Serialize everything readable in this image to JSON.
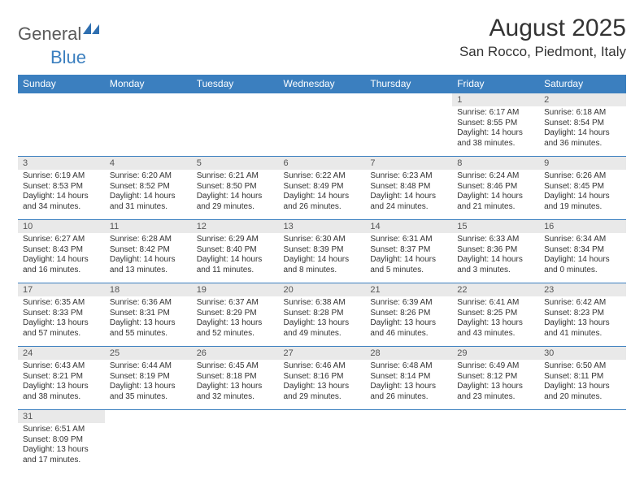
{
  "branding": {
    "word1": "General",
    "word2": "Blue",
    "icon_color": "#2f6fb0"
  },
  "header": {
    "month_title": "August 2025",
    "location": "San Rocco, Piedmont, Italy"
  },
  "colors": {
    "header_bg": "#3b7fbf",
    "header_fg": "#ffffff",
    "daynum_bg": "#e9e9e9",
    "border": "#3b7fbf"
  },
  "weekdays": [
    "Sunday",
    "Monday",
    "Tuesday",
    "Wednesday",
    "Thursday",
    "Friday",
    "Saturday"
  ],
  "weeks": [
    [
      {
        "blank": true
      },
      {
        "blank": true
      },
      {
        "blank": true
      },
      {
        "blank": true
      },
      {
        "blank": true
      },
      {
        "n": "1",
        "sr": "Sunrise: 6:17 AM",
        "ss": "Sunset: 8:55 PM",
        "dl1": "Daylight: 14 hours",
        "dl2": "and 38 minutes."
      },
      {
        "n": "2",
        "sr": "Sunrise: 6:18 AM",
        "ss": "Sunset: 8:54 PM",
        "dl1": "Daylight: 14 hours",
        "dl2": "and 36 minutes."
      }
    ],
    [
      {
        "n": "3",
        "sr": "Sunrise: 6:19 AM",
        "ss": "Sunset: 8:53 PM",
        "dl1": "Daylight: 14 hours",
        "dl2": "and 34 minutes."
      },
      {
        "n": "4",
        "sr": "Sunrise: 6:20 AM",
        "ss": "Sunset: 8:52 PM",
        "dl1": "Daylight: 14 hours",
        "dl2": "and 31 minutes."
      },
      {
        "n": "5",
        "sr": "Sunrise: 6:21 AM",
        "ss": "Sunset: 8:50 PM",
        "dl1": "Daylight: 14 hours",
        "dl2": "and 29 minutes."
      },
      {
        "n": "6",
        "sr": "Sunrise: 6:22 AM",
        "ss": "Sunset: 8:49 PM",
        "dl1": "Daylight: 14 hours",
        "dl2": "and 26 minutes."
      },
      {
        "n": "7",
        "sr": "Sunrise: 6:23 AM",
        "ss": "Sunset: 8:48 PM",
        "dl1": "Daylight: 14 hours",
        "dl2": "and 24 minutes."
      },
      {
        "n": "8",
        "sr": "Sunrise: 6:24 AM",
        "ss": "Sunset: 8:46 PM",
        "dl1": "Daylight: 14 hours",
        "dl2": "and 21 minutes."
      },
      {
        "n": "9",
        "sr": "Sunrise: 6:26 AM",
        "ss": "Sunset: 8:45 PM",
        "dl1": "Daylight: 14 hours",
        "dl2": "and 19 minutes."
      }
    ],
    [
      {
        "n": "10",
        "sr": "Sunrise: 6:27 AM",
        "ss": "Sunset: 8:43 PM",
        "dl1": "Daylight: 14 hours",
        "dl2": "and 16 minutes."
      },
      {
        "n": "11",
        "sr": "Sunrise: 6:28 AM",
        "ss": "Sunset: 8:42 PM",
        "dl1": "Daylight: 14 hours",
        "dl2": "and 13 minutes."
      },
      {
        "n": "12",
        "sr": "Sunrise: 6:29 AM",
        "ss": "Sunset: 8:40 PM",
        "dl1": "Daylight: 14 hours",
        "dl2": "and 11 minutes."
      },
      {
        "n": "13",
        "sr": "Sunrise: 6:30 AM",
        "ss": "Sunset: 8:39 PM",
        "dl1": "Daylight: 14 hours",
        "dl2": "and 8 minutes."
      },
      {
        "n": "14",
        "sr": "Sunrise: 6:31 AM",
        "ss": "Sunset: 8:37 PM",
        "dl1": "Daylight: 14 hours",
        "dl2": "and 5 minutes."
      },
      {
        "n": "15",
        "sr": "Sunrise: 6:33 AM",
        "ss": "Sunset: 8:36 PM",
        "dl1": "Daylight: 14 hours",
        "dl2": "and 3 minutes."
      },
      {
        "n": "16",
        "sr": "Sunrise: 6:34 AM",
        "ss": "Sunset: 8:34 PM",
        "dl1": "Daylight: 14 hours",
        "dl2": "and 0 minutes."
      }
    ],
    [
      {
        "n": "17",
        "sr": "Sunrise: 6:35 AM",
        "ss": "Sunset: 8:33 PM",
        "dl1": "Daylight: 13 hours",
        "dl2": "and 57 minutes."
      },
      {
        "n": "18",
        "sr": "Sunrise: 6:36 AM",
        "ss": "Sunset: 8:31 PM",
        "dl1": "Daylight: 13 hours",
        "dl2": "and 55 minutes."
      },
      {
        "n": "19",
        "sr": "Sunrise: 6:37 AM",
        "ss": "Sunset: 8:29 PM",
        "dl1": "Daylight: 13 hours",
        "dl2": "and 52 minutes."
      },
      {
        "n": "20",
        "sr": "Sunrise: 6:38 AM",
        "ss": "Sunset: 8:28 PM",
        "dl1": "Daylight: 13 hours",
        "dl2": "and 49 minutes."
      },
      {
        "n": "21",
        "sr": "Sunrise: 6:39 AM",
        "ss": "Sunset: 8:26 PM",
        "dl1": "Daylight: 13 hours",
        "dl2": "and 46 minutes."
      },
      {
        "n": "22",
        "sr": "Sunrise: 6:41 AM",
        "ss": "Sunset: 8:25 PM",
        "dl1": "Daylight: 13 hours",
        "dl2": "and 43 minutes."
      },
      {
        "n": "23",
        "sr": "Sunrise: 6:42 AM",
        "ss": "Sunset: 8:23 PM",
        "dl1": "Daylight: 13 hours",
        "dl2": "and 41 minutes."
      }
    ],
    [
      {
        "n": "24",
        "sr": "Sunrise: 6:43 AM",
        "ss": "Sunset: 8:21 PM",
        "dl1": "Daylight: 13 hours",
        "dl2": "and 38 minutes."
      },
      {
        "n": "25",
        "sr": "Sunrise: 6:44 AM",
        "ss": "Sunset: 8:19 PM",
        "dl1": "Daylight: 13 hours",
        "dl2": "and 35 minutes."
      },
      {
        "n": "26",
        "sr": "Sunrise: 6:45 AM",
        "ss": "Sunset: 8:18 PM",
        "dl1": "Daylight: 13 hours",
        "dl2": "and 32 minutes."
      },
      {
        "n": "27",
        "sr": "Sunrise: 6:46 AM",
        "ss": "Sunset: 8:16 PM",
        "dl1": "Daylight: 13 hours",
        "dl2": "and 29 minutes."
      },
      {
        "n": "28",
        "sr": "Sunrise: 6:48 AM",
        "ss": "Sunset: 8:14 PM",
        "dl1": "Daylight: 13 hours",
        "dl2": "and 26 minutes."
      },
      {
        "n": "29",
        "sr": "Sunrise: 6:49 AM",
        "ss": "Sunset: 8:12 PM",
        "dl1": "Daylight: 13 hours",
        "dl2": "and 23 minutes."
      },
      {
        "n": "30",
        "sr": "Sunrise: 6:50 AM",
        "ss": "Sunset: 8:11 PM",
        "dl1": "Daylight: 13 hours",
        "dl2": "and 20 minutes."
      }
    ],
    [
      {
        "n": "31",
        "sr": "Sunrise: 6:51 AM",
        "ss": "Sunset: 8:09 PM",
        "dl1": "Daylight: 13 hours",
        "dl2": "and 17 minutes."
      },
      {
        "blank": true
      },
      {
        "blank": true
      },
      {
        "blank": true
      },
      {
        "blank": true
      },
      {
        "blank": true
      },
      {
        "blank": true
      }
    ]
  ]
}
